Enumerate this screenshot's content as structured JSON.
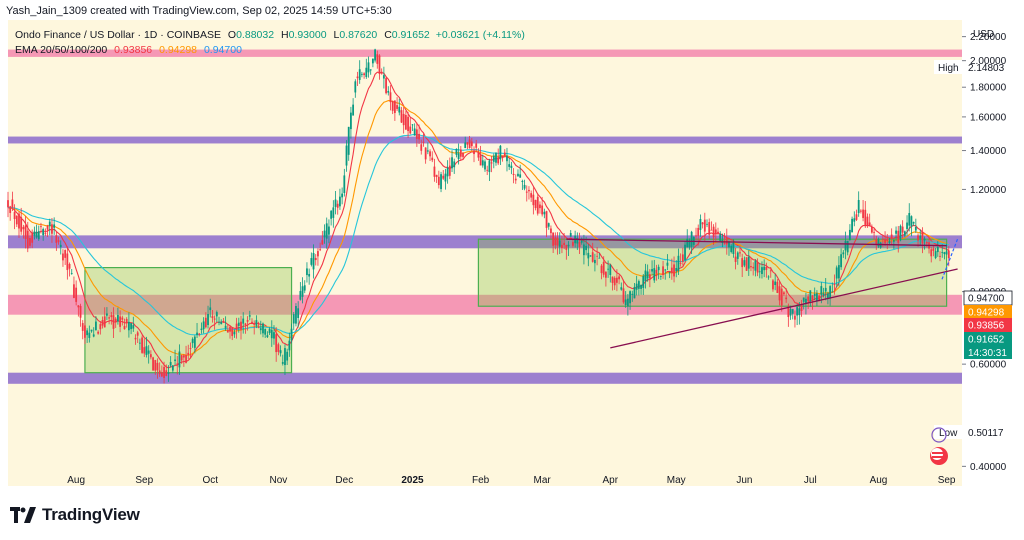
{
  "header": {
    "credit": "Yash_Jain_1309 created with TradingView.com, Sep 02, 2025 14:59 UTC+5:30"
  },
  "legend": {
    "symbol": "Ondo Finance / US Dollar · 1D · COINBASE",
    "open_label": "O",
    "open": "0.88032",
    "high_label": "H",
    "high": "0.93000",
    "low_label": "L",
    "low": "0.87620",
    "close_label": "C",
    "close": "0.91652",
    "change": "+0.03621 (+4.11%)",
    "ema_label": "EMA 20/50/100/200",
    "ema_values": [
      "0.93856",
      "0.94298",
      "0.94700"
    ],
    "colors": {
      "ohlc": "#089981",
      "ema20": "#f23645",
      "ema50": "#ff9800",
      "ema100": "#2196f3"
    }
  },
  "price_axis": {
    "currency": "USD",
    "ticks": [
      "2.20000",
      "2.00000",
      "1.80000",
      "1.60000",
      "1.40000",
      "1.20000",
      "0.80000",
      "0.60000",
      "0.40000"
    ],
    "high_label": "High",
    "high_value": "2.14803",
    "low_label": "Low",
    "low_value": "0.50117",
    "badges": [
      {
        "value": "0.94700",
        "bg": "#ffffff",
        "fg": "#131722"
      },
      {
        "value": "0.94298",
        "bg": "#ff9800",
        "fg": "#ffffff"
      },
      {
        "value": "0.93856",
        "bg": "#f23645",
        "fg": "#ffffff"
      },
      {
        "value": "0.91652",
        "bg": "#089981",
        "fg": "#ffffff"
      }
    ],
    "countdown": "14:30:31"
  },
  "time_axis": {
    "labels": [
      "Aug",
      "Sep",
      "Oct",
      "Nov",
      "Dec",
      "2025",
      "Feb",
      "Mar",
      "Apr",
      "May",
      "Jun",
      "Jul",
      "Aug",
      "Sep"
    ]
  },
  "chart_data": {
    "type": "candlestick",
    "symbol": "Ondo Finance / US Dollar",
    "timeframe": "1D",
    "exchange": "COINBASE",
    "y_scale": "log",
    "ylim": [
      0.37,
      2.35
    ],
    "x_range": [
      "2024-07-01",
      "2025-09-08"
    ],
    "ohlc_last": {
      "open": 0.88032,
      "high": 0.93,
      "low": 0.8762,
      "close": 0.91652,
      "change": 0.03621,
      "change_pct": 4.11
    },
    "all_time_high": 2.14803,
    "period_low": 0.50117,
    "price_path": [
      {
        "date": "2024-07-01",
        "price": 1.15
      },
      {
        "date": "2024-07-10",
        "price": 0.98
      },
      {
        "date": "2024-07-20",
        "price": 1.05
      },
      {
        "date": "2024-07-28",
        "price": 0.9
      },
      {
        "date": "2024-08-05",
        "price": 0.66
      },
      {
        "date": "2024-08-15",
        "price": 0.72
      },
      {
        "date": "2024-08-25",
        "price": 0.7
      },
      {
        "date": "2024-09-08",
        "price": 0.58
      },
      {
        "date": "2024-09-20",
        "price": 0.62
      },
      {
        "date": "2024-10-01",
        "price": 0.74
      },
      {
        "date": "2024-10-10",
        "price": 0.68
      },
      {
        "date": "2024-10-20",
        "price": 0.72
      },
      {
        "date": "2024-10-30",
        "price": 0.66
      },
      {
        "date": "2024-11-03",
        "price": 0.6
      },
      {
        "date": "2024-11-12",
        "price": 0.82
      },
      {
        "date": "2024-11-22",
        "price": 1.0
      },
      {
        "date": "2024-11-30",
        "price": 1.2
      },
      {
        "date": "2024-12-06",
        "price": 1.85
      },
      {
        "date": "2024-12-12",
        "price": 1.95
      },
      {
        "date": "2024-12-15",
        "price": 2.05
      },
      {
        "date": "2024-12-22",
        "price": 1.7
      },
      {
        "date": "2024-12-30",
        "price": 1.55
      },
      {
        "date": "2025-01-07",
        "price": 1.4
      },
      {
        "date": "2025-01-13",
        "price": 1.22
      },
      {
        "date": "2025-01-20",
        "price": 1.35
      },
      {
        "date": "2025-01-27",
        "price": 1.45
      },
      {
        "date": "2025-02-03",
        "price": 1.3
      },
      {
        "date": "2025-02-10",
        "price": 1.38
      },
      {
        "date": "2025-02-20",
        "price": 1.22
      },
      {
        "date": "2025-03-01",
        "price": 1.1
      },
      {
        "date": "2025-03-08",
        "price": 0.95
      },
      {
        "date": "2025-03-15",
        "price": 0.98
      },
      {
        "date": "2025-03-25",
        "price": 0.9
      },
      {
        "date": "2025-04-03",
        "price": 0.85
      },
      {
        "date": "2025-04-08",
        "price": 0.76
      },
      {
        "date": "2025-04-18",
        "price": 0.85
      },
      {
        "date": "2025-05-01",
        "price": 0.88
      },
      {
        "date": "2025-05-12",
        "price": 1.05
      },
      {
        "date": "2025-05-20",
        "price": 1.0
      },
      {
        "date": "2025-06-01",
        "price": 0.9
      },
      {
        "date": "2025-06-12",
        "price": 0.86
      },
      {
        "date": "2025-06-22",
        "price": 0.73
      },
      {
        "date": "2025-07-01",
        "price": 0.78
      },
      {
        "date": "2025-07-10",
        "price": 0.8
      },
      {
        "date": "2025-07-18",
        "price": 0.98
      },
      {
        "date": "2025-07-23",
        "price": 1.12
      },
      {
        "date": "2025-08-01",
        "price": 0.96
      },
      {
        "date": "2025-08-10",
        "price": 1.0
      },
      {
        "date": "2025-08-15",
        "price": 1.06
      },
      {
        "date": "2025-08-25",
        "price": 0.94
      },
      {
        "date": "2025-09-02",
        "price": 0.91652
      }
    ],
    "ema": [
      {
        "name": "EMA 20",
        "last": 0.93856,
        "color": "#f23645",
        "lag_days": 10
      },
      {
        "name": "EMA 50",
        "last": 0.94298,
        "color": "#ff9800",
        "lag_days": 24
      },
      {
        "name": "EMA 100",
        "last": 0.947,
        "color": "#26c6da",
        "lag_days": 48
      }
    ],
    "horizontal_bands": [
      {
        "from": 2.03,
        "to": 2.09,
        "color": "#f48fb1"
      },
      {
        "from": 1.44,
        "to": 1.48,
        "color": "#9575cd"
      },
      {
        "from": 0.95,
        "to": 1.0,
        "color": "#9575cd"
      },
      {
        "from": 0.73,
        "to": 0.79,
        "color": "#f48fb1"
      },
      {
        "from": 0.555,
        "to": 0.58,
        "color": "#9575cd"
      }
    ],
    "boxes": [
      {
        "x0": "2024-08-05",
        "x1": "2024-11-07",
        "y0": 0.58,
        "y1": 0.88
      },
      {
        "x0": "2025-01-31",
        "x1": "2025-09-01",
        "y0": 0.755,
        "y1": 0.985
      }
    ],
    "trendlines": [
      {
        "x0": "2025-03-12",
        "y0": 0.985,
        "x1": "2025-09-01",
        "y1": 0.96
      },
      {
        "x0": "2025-04-01",
        "y0": 0.64,
        "x1": "2025-09-06",
        "y1": 0.875
      }
    ]
  }
}
